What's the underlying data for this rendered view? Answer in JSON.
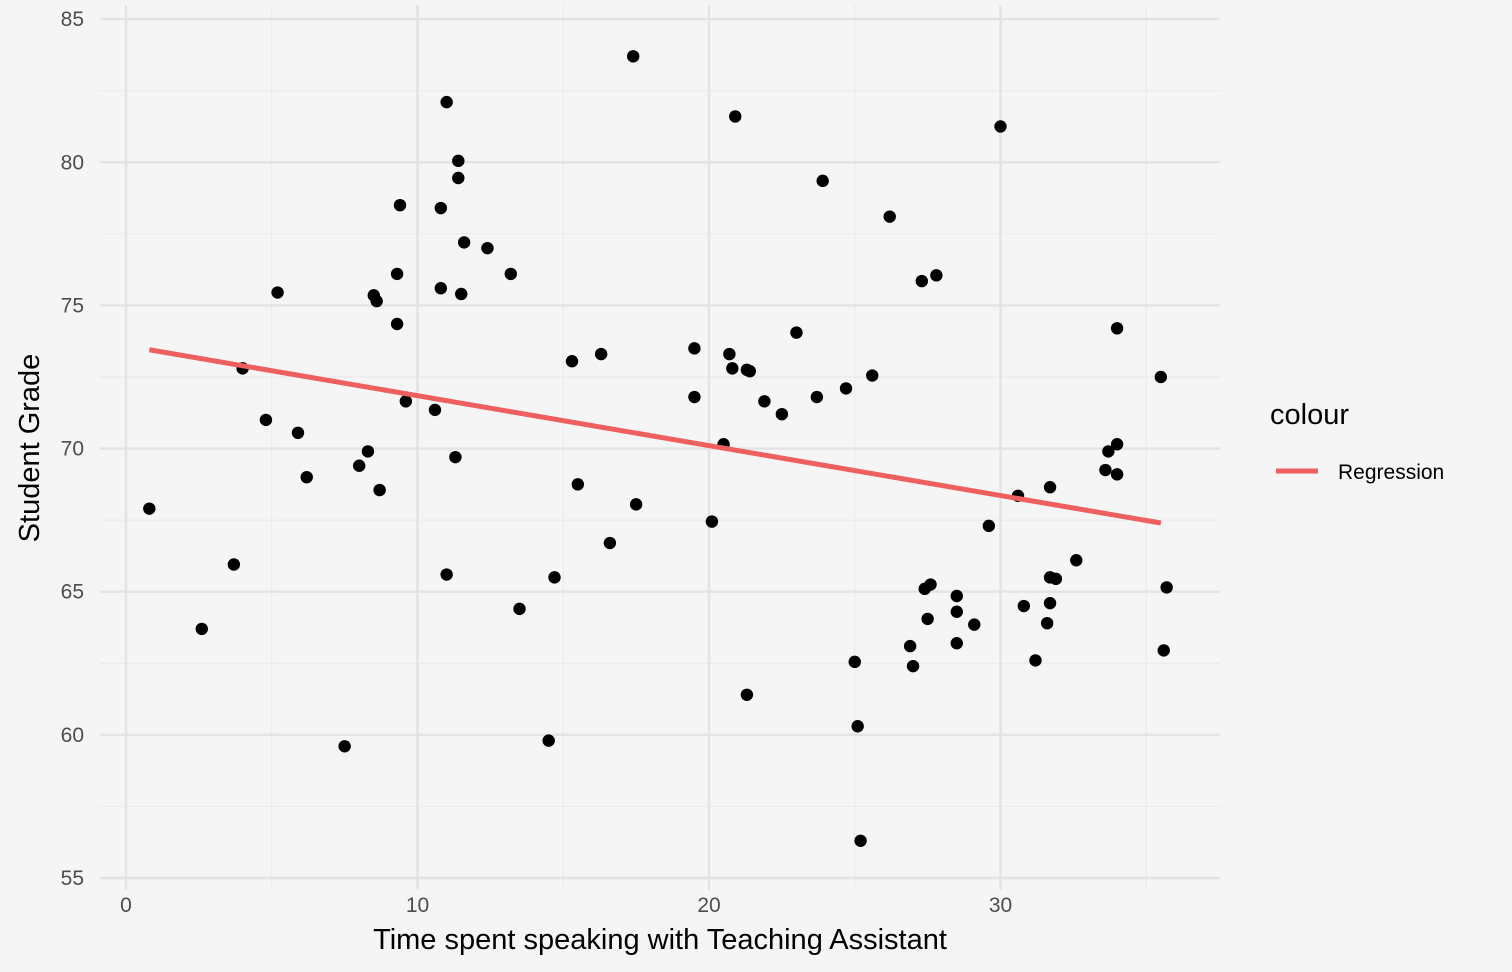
{
  "chart_data": {
    "type": "scatter",
    "xlabel": "Time spent speaking with Teaching Assistant",
    "ylabel": "Student Grade",
    "xlim": [
      -0.5,
      37
    ],
    "ylim": [
      55,
      85
    ],
    "x_ticks": [
      0,
      10,
      20,
      30
    ],
    "y_ticks": [
      55,
      60,
      65,
      70,
      75,
      80,
      85
    ],
    "grid": true,
    "legend": {
      "title": "colour",
      "position": "right",
      "entries": [
        {
          "label": "Regression",
          "color": "#ef5f5f"
        }
      ]
    },
    "regression": {
      "name": "Regression",
      "x": [
        0.8,
        35.5
      ],
      "y": [
        73.45,
        67.4
      ],
      "color": "#ef5f5f"
    },
    "point_color": "#000000",
    "points": [
      [
        0.8,
        67.9
      ],
      [
        2.6,
        63.7
      ],
      [
        3.7,
        65.95
      ],
      [
        4.0,
        72.8
      ],
      [
        4.8,
        71.0
      ],
      [
        5.2,
        75.45
      ],
      [
        5.9,
        70.55
      ],
      [
        6.2,
        69.0
      ],
      [
        7.5,
        59.6
      ],
      [
        8.0,
        69.4
      ],
      [
        8.3,
        69.9
      ],
      [
        8.5,
        75.35
      ],
      [
        8.6,
        75.15
      ],
      [
        8.7,
        68.55
      ],
      [
        9.3,
        76.1
      ],
      [
        9.3,
        74.35
      ],
      [
        9.4,
        78.5
      ],
      [
        9.6,
        71.65
      ],
      [
        10.6,
        71.35
      ],
      [
        10.8,
        75.6
      ],
      [
        10.8,
        78.4
      ],
      [
        11.0,
        82.1
      ],
      [
        11.0,
        65.6
      ],
      [
        11.3,
        69.7
      ],
      [
        11.4,
        79.45
      ],
      [
        11.4,
        80.05
      ],
      [
        11.5,
        75.4
      ],
      [
        11.6,
        77.2
      ],
      [
        12.4,
        77.0
      ],
      [
        13.2,
        76.1
      ],
      [
        13.5,
        64.4
      ],
      [
        14.5,
        59.8
      ],
      [
        14.7,
        65.5
      ],
      [
        15.3,
        73.05
      ],
      [
        15.5,
        68.75
      ],
      [
        16.3,
        73.3
      ],
      [
        16.6,
        66.7
      ],
      [
        17.4,
        83.7
      ],
      [
        17.5,
        68.05
      ],
      [
        19.5,
        71.8
      ],
      [
        19.5,
        73.5
      ],
      [
        20.1,
        67.45
      ],
      [
        20.5,
        70.15
      ],
      [
        20.7,
        73.3
      ],
      [
        20.8,
        72.8
      ],
      [
        20.9,
        81.6
      ],
      [
        21.3,
        72.75
      ],
      [
        21.4,
        72.7
      ],
      [
        21.3,
        61.4
      ],
      [
        21.9,
        71.65
      ],
      [
        22.5,
        71.2
      ],
      [
        23.0,
        74.05
      ],
      [
        23.7,
        71.8
      ],
      [
        23.9,
        79.35
      ],
      [
        24.7,
        72.1
      ],
      [
        25.0,
        62.55
      ],
      [
        25.1,
        60.3
      ],
      [
        25.2,
        56.3
      ],
      [
        25.6,
        72.55
      ],
      [
        26.2,
        78.1
      ],
      [
        26.9,
        63.1
      ],
      [
        27.0,
        62.4
      ],
      [
        27.3,
        75.85
      ],
      [
        27.4,
        65.1
      ],
      [
        27.5,
        64.05
      ],
      [
        27.6,
        65.25
      ],
      [
        27.8,
        76.05
      ],
      [
        28.5,
        64.85
      ],
      [
        28.5,
        64.3
      ],
      [
        28.5,
        63.2
      ],
      [
        29.1,
        63.85
      ],
      [
        29.6,
        67.3
      ],
      [
        30.0,
        81.25
      ],
      [
        30.6,
        68.35
      ],
      [
        30.8,
        64.5
      ],
      [
        31.2,
        62.6
      ],
      [
        31.6,
        63.9
      ],
      [
        31.7,
        64.6
      ],
      [
        31.7,
        65.5
      ],
      [
        31.7,
        68.65
      ],
      [
        31.9,
        65.45
      ],
      [
        32.6,
        66.1
      ],
      [
        33.6,
        69.25
      ],
      [
        33.7,
        69.9
      ],
      [
        34.0,
        70.15
      ],
      [
        34.0,
        69.1
      ],
      [
        34.0,
        74.2
      ],
      [
        35.5,
        72.5
      ],
      [
        35.6,
        62.95
      ],
      [
        35.7,
        65.15
      ]
    ]
  }
}
